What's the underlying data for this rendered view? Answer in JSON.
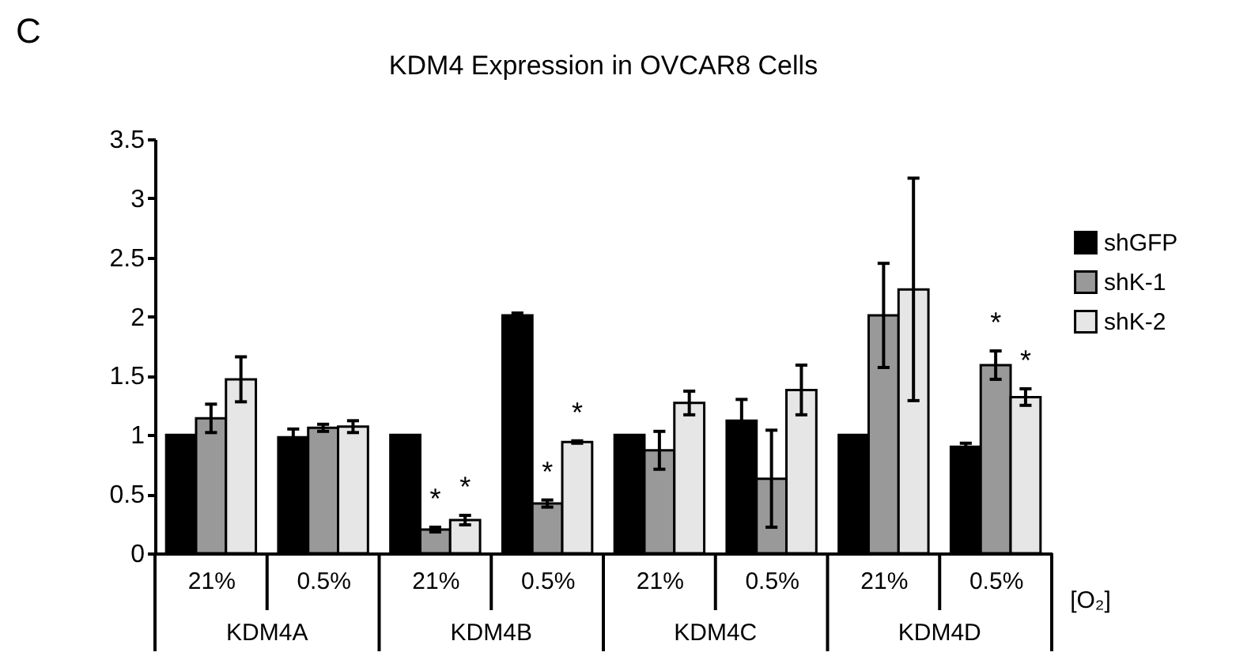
{
  "chart_data": {
    "type": "bar",
    "title": "KDM4 Expression in OVCAR8 Cells",
    "xlabel": "[O₂]",
    "categories": [
      "21%",
      "0.5%",
      "21%",
      "0.5%",
      "21%",
      "0.5%",
      "21%",
      "0.5%"
    ],
    "series": [
      {
        "name": "shGFP",
        "color": "#000000",
        "values": [
          1.0,
          0.98,
          1.0,
          2.01,
          1.0,
          1.12,
          1.0,
          0.9
        ],
        "errors": [
          null,
          0.07,
          null,
          0.02,
          null,
          0.18,
          null,
          0.03
        ]
      },
      {
        "name": "shK-1",
        "color": "#999999",
        "values": [
          1.14,
          1.06,
          0.2,
          0.42,
          0.87,
          0.63,
          2.01,
          1.59
        ],
        "errors": [
          0.12,
          0.03,
          0.02,
          0.03,
          0.16,
          0.41,
          0.44,
          0.12
        ],
        "value_labels": [
          null,
          null,
          "*",
          "*",
          null,
          null,
          null,
          "*"
        ]
      },
      {
        "name": "shK-2",
        "color": "#e6e6e6",
        "values": [
          1.47,
          1.07,
          0.28,
          0.94,
          1.27,
          1.38,
          2.23,
          1.32
        ],
        "errors": [
          0.19,
          0.05,
          0.04,
          0.01,
          0.1,
          0.21,
          0.94,
          0.07
        ],
        "value_labels": [
          null,
          null,
          "*",
          "*",
          null,
          null,
          null,
          "*"
        ]
      }
    ],
    "ylim": [
      0,
      3.5
    ],
    "yticks": [
      0,
      0.5,
      1,
      1.5,
      2,
      2.5,
      3,
      3.5
    ],
    "grid": false,
    "legend": "right",
    "annotations": [
      "C",
      "KDM4A",
      "KDM4B",
      "KDM4C",
      "KDM4D"
    ]
  }
}
